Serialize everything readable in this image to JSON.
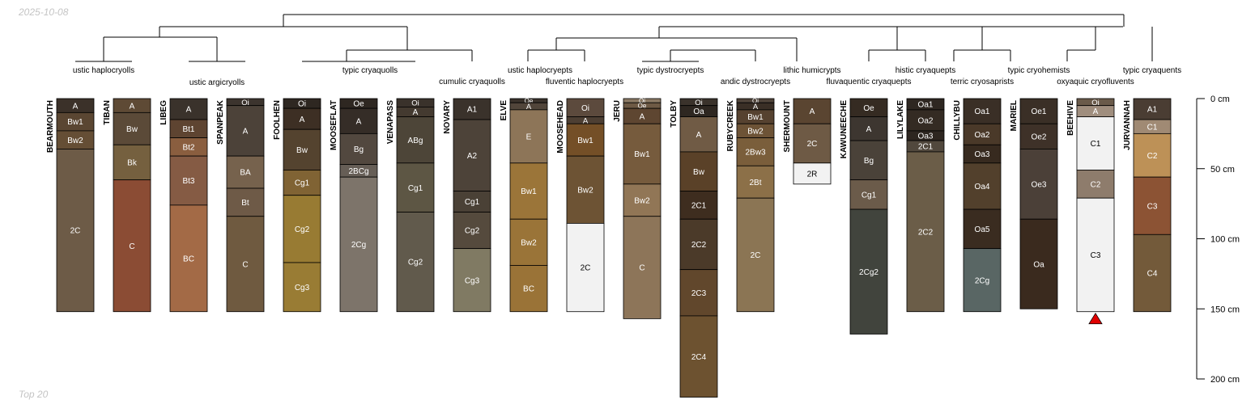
{
  "header": {
    "date": "2025-10-08"
  },
  "footer": {
    "caption": "Top 20"
  },
  "colors": {
    "line": "#000000",
    "triangle": "#e00000",
    "text_dark": "#ffffff",
    "text_light": "#000000"
  },
  "chart_data": {
    "type": "soil-profile-sketch",
    "title": "",
    "depth_axis": {
      "label_unit": "cm",
      "min": 0,
      "max": 200,
      "ticks": [
        {
          "value": 0,
          "label": "0 cm"
        },
        {
          "value": 50,
          "label": "50 cm"
        },
        {
          "value": 100,
          "label": "100 cm"
        },
        {
          "value": 150,
          "label": "150 cm"
        },
        {
          "value": 200,
          "label": "200 cm"
        }
      ]
    },
    "taxa": [
      "ustic haplocryolls",
      "ustic argicryolls",
      "typic cryaquolls",
      "cumulic cryaquolls",
      "ustic haplocryepts",
      "fluventic haplocryepts",
      "typic dystrocryepts",
      "andic dystrocryepts",
      "lithic humicrypts",
      "fluvaquentic cryaquepts",
      "histic cryaquepts",
      "terric cryosaprists",
      "typic cryohemists",
      "oxyaquic cryofluvents",
      "typic cryaquents"
    ],
    "profiles": [
      {
        "name": "BEARMOUTH",
        "horizons": [
          {
            "name": "A",
            "top": 0,
            "bottom": 10,
            "color": "#3b3129"
          },
          {
            "name": "Bw1",
            "top": 10,
            "bottom": 23,
            "color": "#5a4632"
          },
          {
            "name": "Bw2",
            "top": 23,
            "bottom": 36,
            "color": "#654e35"
          },
          {
            "name": "2C",
            "top": 36,
            "bottom": 152,
            "color": "#6d5b47"
          }
        ]
      },
      {
        "name": "TIBAN",
        "horizons": [
          {
            "name": "A",
            "top": 0,
            "bottom": 10,
            "color": "#5e4a35"
          },
          {
            "name": "Bw",
            "top": 10,
            "bottom": 33,
            "color": "#5b4a38"
          },
          {
            "name": "Bk",
            "top": 33,
            "bottom": 58,
            "color": "#75603f"
          },
          {
            "name": "C",
            "top": 58,
            "bottom": 152,
            "color": "#8b4c34"
          }
        ]
      },
      {
        "name": "LIBEG",
        "horizons": [
          {
            "name": "A",
            "top": 0,
            "bottom": 15,
            "color": "#3a322b"
          },
          {
            "name": "Bt1",
            "top": 15,
            "bottom": 28,
            "color": "#5e4431"
          },
          {
            "name": "Bt2",
            "top": 28,
            "bottom": 41,
            "color": "#8a5e3f"
          },
          {
            "name": "Bt3",
            "top": 41,
            "bottom": 76,
            "color": "#855b44"
          },
          {
            "name": "BC",
            "top": 76,
            "bottom": 152,
            "color": "#a36a46"
          }
        ]
      },
      {
        "name": "SPANPEAK",
        "horizons": [
          {
            "name": "Oi",
            "top": 0,
            "bottom": 5,
            "color": "#3c342e"
          },
          {
            "name": "A",
            "top": 5,
            "bottom": 41,
            "color": "#4c4239"
          },
          {
            "name": "BA",
            "top": 41,
            "bottom": 64,
            "color": "#76624d"
          },
          {
            "name": "Bt",
            "top": 64,
            "bottom": 84,
            "color": "#6e5a47"
          },
          {
            "name": "C",
            "top": 84,
            "bottom": 152,
            "color": "#6f5a40"
          }
        ]
      },
      {
        "name": "FOOLHEN",
        "horizons": [
          {
            "name": "Oi",
            "top": 0,
            "bottom": 7,
            "color": "#2e2721"
          },
          {
            "name": "A",
            "top": 7,
            "bottom": 22,
            "color": "#3d2f24"
          },
          {
            "name": "Bw",
            "top": 22,
            "bottom": 51,
            "color": "#54432f"
          },
          {
            "name": "Cg1",
            "top": 51,
            "bottom": 69,
            "color": "#806334"
          },
          {
            "name": "Cg2",
            "top": 69,
            "bottom": 117,
            "color": "#987b33"
          },
          {
            "name": "Cg3",
            "top": 117,
            "bottom": 152,
            "color": "#997c34"
          }
        ]
      },
      {
        "name": "MOOSEFLAT",
        "horizons": [
          {
            "name": "Oe",
            "top": 0,
            "bottom": 7,
            "color": "#2e2721"
          },
          {
            "name": "A",
            "top": 7,
            "bottom": 25,
            "color": "#352d27"
          },
          {
            "name": "Bg",
            "top": 25,
            "bottom": 47,
            "color": "#52483f"
          },
          {
            "name": "2BCg",
            "top": 47,
            "bottom": 56,
            "color": "#665e56"
          },
          {
            "name": "2Cg",
            "top": 56,
            "bottom": 152,
            "color": "#7d746a"
          }
        ]
      },
      {
        "name": "VENAPASS",
        "horizons": [
          {
            "name": "Oi",
            "top": 0,
            "bottom": 6,
            "color": "#3a322b"
          },
          {
            "name": "A",
            "top": 6,
            "bottom": 13,
            "color": "#443a30"
          },
          {
            "name": "ABg",
            "top": 13,
            "bottom": 46,
            "color": "#4d4538"
          },
          {
            "name": "Cg1",
            "top": 46,
            "bottom": 81,
            "color": "#5d5644"
          },
          {
            "name": "Cg2",
            "top": 81,
            "bottom": 152,
            "color": "#615a4c"
          }
        ]
      },
      {
        "name": "NOVARY",
        "horizons": [
          {
            "name": "A1",
            "top": 0,
            "bottom": 15,
            "color": "#3a322b"
          },
          {
            "name": "A2",
            "top": 15,
            "bottom": 66,
            "color": "#4d4339"
          },
          {
            "name": "Cg1",
            "top": 66,
            "bottom": 81,
            "color": "#4a4136"
          },
          {
            "name": "Cg2",
            "top": 81,
            "bottom": 107,
            "color": "#554a3d"
          },
          {
            "name": "Cg3",
            "top": 107,
            "bottom": 152,
            "color": "#807a63"
          }
        ]
      },
      {
        "name": "ELVE",
        "horizons": [
          {
            "name": "Oe",
            "top": 0,
            "bottom": 3,
            "color": "#3a322b"
          },
          {
            "name": "A",
            "top": 3,
            "bottom": 8,
            "color": "#51453a"
          },
          {
            "name": "E",
            "top": 8,
            "bottom": 46,
            "color": "#8d7558"
          },
          {
            "name": "Bw1",
            "top": 46,
            "bottom": 86,
            "color": "#9b7539"
          },
          {
            "name": "Bw2",
            "top": 86,
            "bottom": 119,
            "color": "#9a7438"
          },
          {
            "name": "BC",
            "top": 119,
            "bottom": 152,
            "color": "#9a7337"
          }
        ]
      },
      {
        "name": "MOOSEHEAD",
        "horizons": [
          {
            "name": "Oi",
            "top": 0,
            "bottom": 13,
            "color": "#5c4a3d"
          },
          {
            "name": "A",
            "top": 13,
            "bottom": 18,
            "color": "#4d3f33"
          },
          {
            "name": "Bw1",
            "top": 18,
            "bottom": 41,
            "color": "#744f27"
          },
          {
            "name": "Bw2",
            "top": 41,
            "bottom": 89,
            "color": "#6d5334"
          },
          {
            "name": "2C",
            "top": 89,
            "bottom": 152,
            "color": "#f2f2f2"
          }
        ]
      },
      {
        "name": "JERU",
        "horizons": [
          {
            "name": "Oi",
            "top": 0,
            "bottom": 3,
            "color": "#8b7a65"
          },
          {
            "name": "Oe",
            "top": 3,
            "bottom": 7,
            "color": "#6e5a45"
          },
          {
            "name": "A",
            "top": 7,
            "bottom": 18,
            "color": "#5e4631"
          },
          {
            "name": "Bw1",
            "top": 18,
            "bottom": 61,
            "color": "#765b3d"
          },
          {
            "name": "Bw2",
            "top": 61,
            "bottom": 84,
            "color": "#917656"
          },
          {
            "name": "C",
            "top": 84,
            "bottom": 157,
            "color": "#8d7559"
          }
        ]
      },
      {
        "name": "TOLBY",
        "horizons": [
          {
            "name": "Oi",
            "top": 0,
            "bottom": 5,
            "color": "#3a322b"
          },
          {
            "name": "Oa",
            "top": 5,
            "bottom": 13,
            "color": "#2e2721"
          },
          {
            "name": "A",
            "top": 13,
            "bottom": 38,
            "color": "#705b45"
          },
          {
            "name": "Bw",
            "top": 38,
            "bottom": 66,
            "color": "#5a4128"
          },
          {
            "name": "2C1",
            "top": 66,
            "bottom": 86,
            "color": "#3e2d1f"
          },
          {
            "name": "2C2",
            "top": 86,
            "bottom": 122,
            "color": "#4b3a29"
          },
          {
            "name": "2C3",
            "top": 122,
            "bottom": 155,
            "color": "#61472c"
          },
          {
            "name": "2C4",
            "top": 155,
            "bottom": 213,
            "color": "#6d5230"
          }
        ]
      },
      {
        "name": "RUBYCREEK",
        "horizons": [
          {
            "name": "Oi",
            "top": 0,
            "bottom": 3,
            "color": "#50443a"
          },
          {
            "name": "A",
            "top": 3,
            "bottom": 8,
            "color": "#3a2f26"
          },
          {
            "name": "Bw1",
            "top": 8,
            "bottom": 18,
            "color": "#564230"
          },
          {
            "name": "Bw2",
            "top": 18,
            "bottom": 28,
            "color": "#6d5336"
          },
          {
            "name": "2Bw3",
            "top": 28,
            "bottom": 48,
            "color": "#7a5e3b"
          },
          {
            "name": "2Bt",
            "top": 48,
            "bottom": 71,
            "color": "#8c7048"
          },
          {
            "name": "2C",
            "top": 71,
            "bottom": 152,
            "color": "#8b7554"
          }
        ]
      },
      {
        "name": "SHERMOUNT",
        "horizons": [
          {
            "name": "A",
            "top": 0,
            "bottom": 18,
            "color": "#5a4531"
          },
          {
            "name": "2C",
            "top": 18,
            "bottom": 46,
            "color": "#6e5a45"
          },
          {
            "name": "2R",
            "top": 46,
            "bottom": 61,
            "color": "#f2f2f2"
          }
        ]
      },
      {
        "name": "KAWUNEECHE",
        "horizons": [
          {
            "name": "Oe",
            "top": 0,
            "bottom": 13,
            "color": "#352b22"
          },
          {
            "name": "A",
            "top": 13,
            "bottom": 30,
            "color": "#3d3630"
          },
          {
            "name": "Bg",
            "top": 30,
            "bottom": 58,
            "color": "#4a4239"
          },
          {
            "name": "Cg1",
            "top": 58,
            "bottom": 79,
            "color": "#6b5b4a"
          },
          {
            "name": "2Cg2",
            "top": 79,
            "bottom": 168,
            "color": "#41443d"
          }
        ]
      },
      {
        "name": "LILYLAKE",
        "horizons": [
          {
            "name": "Oa1",
            "top": 0,
            "bottom": 8,
            "color": "#2e2721"
          },
          {
            "name": "Oa2",
            "top": 8,
            "bottom": 23,
            "color": "#342b23"
          },
          {
            "name": "Oa3",
            "top": 23,
            "bottom": 30,
            "color": "#2d2620"
          },
          {
            "name": "2C1",
            "top": 30,
            "bottom": 38,
            "color": "#51483d"
          },
          {
            "name": "2C2",
            "top": 38,
            "bottom": 152,
            "color": "#6b5d48"
          }
        ]
      },
      {
        "name": "CHILLYBU",
        "horizons": [
          {
            "name": "Oa1",
            "top": 0,
            "bottom": 18,
            "color": "#3a2f26"
          },
          {
            "name": "Oa2",
            "top": 18,
            "bottom": 33,
            "color": "#4a3929"
          },
          {
            "name": "Oa3",
            "top": 33,
            "bottom": 46,
            "color": "#372a1f"
          },
          {
            "name": "Oa4",
            "top": 46,
            "bottom": 79,
            "color": "#52402c"
          },
          {
            "name": "Oa5",
            "top": 79,
            "bottom": 107,
            "color": "#3a2c20"
          },
          {
            "name": "2Cg",
            "top": 107,
            "bottom": 152,
            "color": "#596664"
          }
        ]
      },
      {
        "name": "MARIEL",
        "horizons": [
          {
            "name": "Oe1",
            "top": 0,
            "bottom": 18,
            "color": "#3a2f26"
          },
          {
            "name": "Oe2",
            "top": 18,
            "bottom": 36,
            "color": "#3e3128"
          },
          {
            "name": "Oe3",
            "top": 36,
            "bottom": 86,
            "color": "#4b4038"
          },
          {
            "name": "Oa",
            "top": 86,
            "bottom": 150,
            "color": "#3a2a1e"
          }
        ]
      },
      {
        "name": "BEEHIVE",
        "horizons": [
          {
            "name": "Oi",
            "top": 0,
            "bottom": 5,
            "color": "#6a5a4a"
          },
          {
            "name": "A",
            "top": 5,
            "bottom": 13,
            "color": "#a08e7e"
          },
          {
            "name": "C1",
            "top": 13,
            "bottom": 51,
            "color": "#f2f2f2"
          },
          {
            "name": "C2",
            "top": 51,
            "bottom": 71,
            "color": "#8e7c6c"
          },
          {
            "name": "C3",
            "top": 71,
            "bottom": 152,
            "color": "#f2f2f2"
          }
        ],
        "marker": "bottom-triangle"
      },
      {
        "name": "JURVANNAH",
        "horizons": [
          {
            "name": "A1",
            "top": 0,
            "bottom": 15,
            "color": "#4a3d33"
          },
          {
            "name": "C1",
            "top": 15,
            "bottom": 25,
            "color": "#a08a74"
          },
          {
            "name": "C2",
            "top": 25,
            "bottom": 56,
            "color": "#bd9157"
          },
          {
            "name": "C3",
            "top": 56,
            "bottom": 97,
            "color": "#8c5334"
          },
          {
            "name": "C4",
            "top": 97,
            "bottom": 152,
            "color": "#735a3a"
          }
        ]
      }
    ]
  }
}
